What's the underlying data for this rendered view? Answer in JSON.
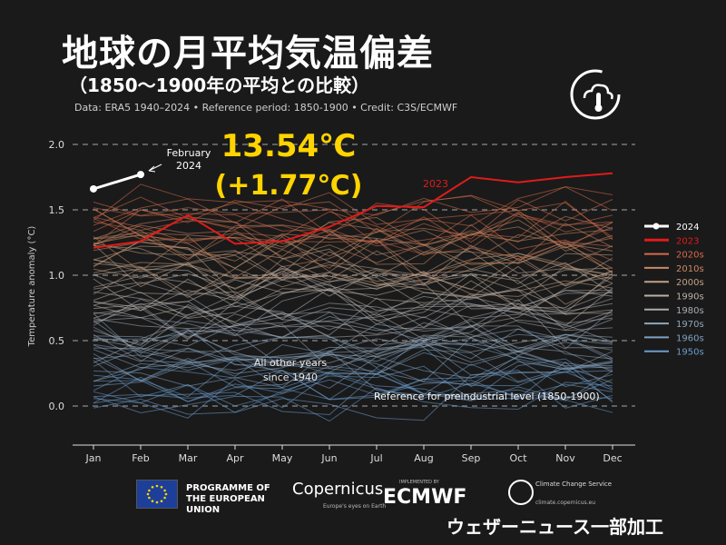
{
  "header": {
    "title": "地球の月平均気温偏差",
    "subtitle": "（1850〜1900年の平均との比較）",
    "source": "Data: ERA5 1940–2024 • Reference period: 1850-1900 • Credit: C3S/ECMWF"
  },
  "highlight": {
    "temperature": "13.54℃",
    "anomaly": "(+1.77℃)",
    "color": "#ffd400"
  },
  "footer": {
    "eu_text": "PROGRAMME OF THE EUROPEAN UNION",
    "copernicus": "Copernicus",
    "copernicus_tag": "Europe's eyes on Earth",
    "ecmwf_small": "IMPLEMENTED BY",
    "ecmwf": "ECMWF",
    "c3s_text": "Climate Change Service",
    "c3s_url": "climate.copernicus.eu",
    "credit": "ウェザーニュース一部加工"
  },
  "icons": {
    "logo": "thermometer-cloud-icon",
    "eu_flag": "eu-flag-icon",
    "c3s": "c3s-icon"
  },
  "chart_data": {
    "type": "line",
    "ylabel": "Temperature anomaly (°C)",
    "ylim": [
      -0.3,
      2.1
    ],
    "yticks": [
      0.0,
      0.5,
      1.0,
      1.5,
      2.0
    ],
    "ytick_labels": [
      "0.0",
      "0.5",
      "1.0",
      "1.5",
      "2.0"
    ],
    "grid": true,
    "categories": [
      "Jan",
      "Feb",
      "Mar",
      "Apr",
      "May",
      "Jun",
      "Jul",
      "Aug",
      "Sep",
      "Oct",
      "Nov",
      "Dec"
    ],
    "series": [
      {
        "name": "2024",
        "color": "#ffffff",
        "values": [
          1.66,
          1.77,
          null,
          null,
          null,
          null,
          null,
          null,
          null,
          null,
          null,
          null
        ]
      },
      {
        "name": "2023",
        "color": "#e01b1b",
        "values": [
          1.21,
          1.26,
          1.46,
          1.24,
          1.26,
          1.37,
          1.53,
          1.52,
          1.75,
          1.71,
          1.75,
          1.78
        ]
      }
    ],
    "decade_legend": [
      {
        "name": "2020s",
        "color": "#d36b4a"
      },
      {
        "name": "2010s",
        "color": "#c98865"
      },
      {
        "name": "2000s",
        "color": "#c0a088"
      },
      {
        "name": "1990s",
        "color": "#b9b1a8"
      },
      {
        "name": "1980s",
        "color": "#a7acb2"
      },
      {
        "name": "1970s",
        "color": "#8fa6ba"
      },
      {
        "name": "1960s",
        "color": "#7ea1c3"
      },
      {
        "name": "1950s",
        "color": "#6c9ccd"
      }
    ],
    "background_band": {
      "min": -0.15,
      "max": 1.65
    },
    "annotations": {
      "feb_2024": "February\n2024",
      "label_2023": "2023",
      "other_years": "All other years\nsince 1940",
      "reference": "Reference for preindustrial level (1850-1900)"
    }
  }
}
